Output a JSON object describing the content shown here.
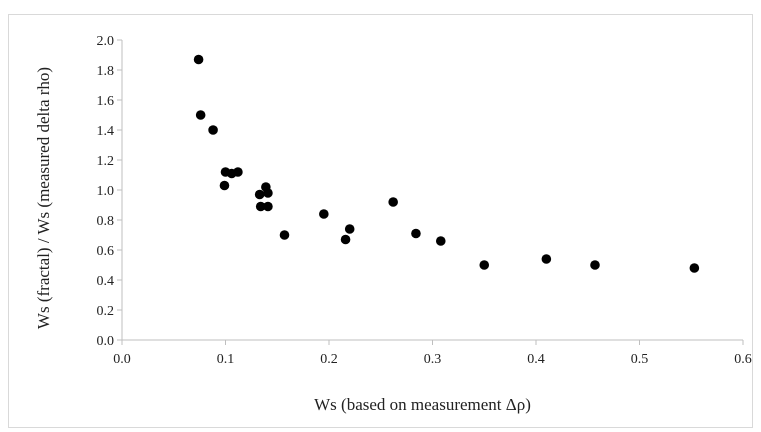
{
  "chart_data": {
    "type": "scatter",
    "title": "",
    "xlabel": "Ws (based on measurement Δρ)",
    "ylabel": "Ws (fractal) / Ws (measured delta rho)",
    "xlim": [
      0.0,
      0.6
    ],
    "ylim": [
      0.0,
      2.0
    ],
    "x_ticks": [
      "0.0",
      "0.1",
      "0.2",
      "0.3",
      "0.4",
      "0.5",
      "0.6"
    ],
    "y_ticks": [
      "0.0",
      "0.2",
      "0.4",
      "0.6",
      "0.8",
      "1.0",
      "1.2",
      "1.4",
      "1.6",
      "1.8",
      "2.0"
    ],
    "x_tick_values": [
      0.0,
      0.1,
      0.2,
      0.3,
      0.4,
      0.5,
      0.6
    ],
    "y_tick_values": [
      0.0,
      0.2,
      0.4,
      0.6,
      0.8,
      1.0,
      1.2,
      1.4,
      1.6,
      1.8,
      2.0
    ],
    "grid": false,
    "marker_color": "#000000",
    "axis_color": "#bfbfbf",
    "series": [
      {
        "points": [
          {
            "x": 0.074,
            "y": 1.87
          },
          {
            "x": 0.076,
            "y": 1.5
          },
          {
            "x": 0.088,
            "y": 1.4
          },
          {
            "x": 0.099,
            "y": 1.03
          },
          {
            "x": 0.1,
            "y": 1.12
          },
          {
            "x": 0.106,
            "y": 1.11
          },
          {
            "x": 0.112,
            "y": 1.12
          },
          {
            "x": 0.133,
            "y": 0.97
          },
          {
            "x": 0.134,
            "y": 0.89
          },
          {
            "x": 0.139,
            "y": 1.02
          },
          {
            "x": 0.141,
            "y": 0.98
          },
          {
            "x": 0.141,
            "y": 0.89
          },
          {
            "x": 0.157,
            "y": 0.7
          },
          {
            "x": 0.195,
            "y": 0.84
          },
          {
            "x": 0.216,
            "y": 0.67
          },
          {
            "x": 0.22,
            "y": 0.74
          },
          {
            "x": 0.262,
            "y": 0.92
          },
          {
            "x": 0.284,
            "y": 0.71
          },
          {
            "x": 0.308,
            "y": 0.66
          },
          {
            "x": 0.35,
            "y": 0.5
          },
          {
            "x": 0.41,
            "y": 0.54
          },
          {
            "x": 0.457,
            "y": 0.5
          },
          {
            "x": 0.553,
            "y": 0.48
          }
        ]
      }
    ]
  }
}
